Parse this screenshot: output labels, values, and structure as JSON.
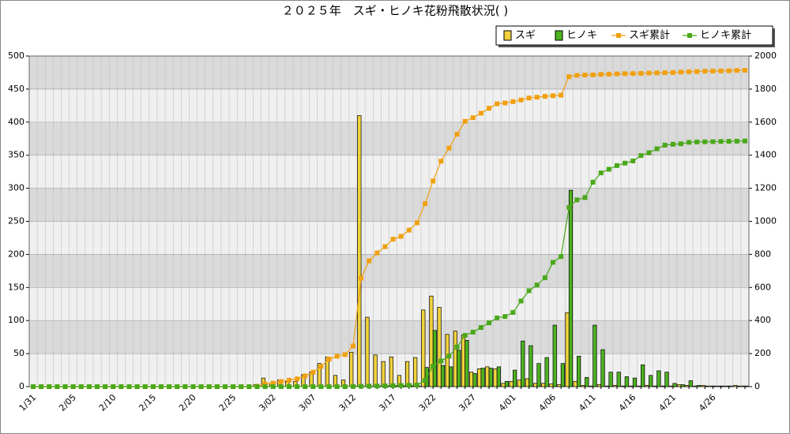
{
  "chart_data": {
    "type": "bar",
    "title": "２０２５年　スギ・ヒノキ花粉飛散状況( )",
    "categories": [
      "1/31",
      null,
      null,
      null,
      null,
      "2/05",
      null,
      null,
      null,
      null,
      "2/10",
      null,
      null,
      null,
      null,
      "2/15",
      null,
      null,
      null,
      null,
      "2/20",
      null,
      null,
      null,
      null,
      "2/25",
      null,
      null,
      null,
      null,
      "3/02",
      null,
      null,
      null,
      null,
      "3/07",
      null,
      null,
      null,
      null,
      "3/12",
      null,
      null,
      null,
      null,
      "3/17",
      null,
      null,
      null,
      null,
      "3/22",
      null,
      null,
      null,
      null,
      "3/27",
      null,
      null,
      null,
      null,
      "4/01",
      null,
      null,
      null,
      null,
      "4/06",
      null,
      null,
      null,
      null,
      "4/11",
      null,
      null,
      null,
      null,
      "4/16",
      null,
      null,
      null,
      null,
      "4/21",
      null,
      null,
      null,
      null,
      "4/26",
      null,
      null,
      null,
      null
    ],
    "series": [
      {
        "name": "スギ",
        "type": "bar",
        "color": "#f2d23c",
        "values": [
          0,
          0,
          0,
          0,
          0,
          0,
          0,
          0,
          0,
          0,
          0,
          0,
          0,
          0,
          0,
          0,
          0,
          0,
          0,
          0,
          0,
          0,
          0,
          0,
          0,
          0,
          0,
          0,
          3,
          13,
          5,
          10,
          8,
          8,
          18,
          22,
          35,
          45,
          17,
          10,
          52,
          410,
          105,
          48,
          38,
          45,
          17,
          38,
          44,
          116,
          137,
          120,
          79,
          84,
          78,
          22,
          27,
          30,
          27,
          5,
          8,
          10,
          12,
          5,
          5,
          4,
          3,
          112,
          8,
          2,
          1,
          3,
          1,
          2,
          1,
          1,
          1,
          2,
          1,
          1,
          1,
          3,
          2,
          1,
          2,
          1,
          1,
          1,
          2,
          1
        ]
      },
      {
        "name": "ヒノキ",
        "type": "bar",
        "color": "#4db31e",
        "values": [
          0,
          0,
          0,
          0,
          0,
          0,
          0,
          0,
          0,
          0,
          0,
          0,
          0,
          0,
          0,
          0,
          0,
          0,
          0,
          0,
          0,
          0,
          0,
          0,
          0,
          0,
          0,
          0,
          0,
          0,
          0,
          0,
          0,
          0,
          0,
          0,
          0,
          0,
          0,
          0,
          1,
          1,
          1,
          1,
          1,
          1,
          1,
          1,
          1,
          29,
          85,
          32,
          30,
          55,
          70,
          20,
          28,
          28,
          30,
          8,
          25,
          69,
          62,
          35,
          44,
          93,
          35,
          297,
          46,
          14,
          93,
          56,
          22,
          22,
          15,
          13,
          33,
          17,
          24,
          22,
          5,
          3,
          9,
          2,
          1,
          1,
          1,
          1,
          1,
          1
        ]
      },
      {
        "name": "スギ累計",
        "type": "line",
        "axis": "y2",
        "color": "#f0a010",
        "values": [
          0,
          0,
          0,
          0,
          0,
          0,
          0,
          0,
          0,
          0,
          0,
          0,
          0,
          0,
          0,
          0,
          0,
          0,
          0,
          0,
          0,
          0,
          0,
          0,
          0,
          0,
          0,
          0,
          3,
          16,
          21,
          31,
          39,
          47,
          65,
          87,
          122,
          167,
          184,
          194,
          246,
          656,
          761,
          809,
          847,
          892,
          909,
          947,
          991,
          1107,
          1244,
          1364,
          1443,
          1527,
          1605,
          1627,
          1654,
          1684,
          1711,
          1716,
          1724,
          1734,
          1746,
          1751,
          1756,
          1760,
          1763,
          1875,
          1883,
          1885,
          1886,
          1889,
          1890,
          1892,
          1893,
          1894,
          1895,
          1897,
          1898,
          1899,
          1900,
          1903,
          1905,
          1906,
          1908,
          1909,
          1910,
          1911,
          1913,
          1914
        ]
      },
      {
        "name": "ヒノキ累計",
        "type": "line",
        "axis": "y2",
        "color": "#4aa81a",
        "values": [
          0,
          0,
          0,
          0,
          0,
          0,
          0,
          0,
          0,
          0,
          0,
          0,
          0,
          0,
          0,
          0,
          0,
          0,
          0,
          0,
          0,
          0,
          0,
          0,
          0,
          0,
          0,
          0,
          0,
          0,
          0,
          0,
          0,
          0,
          0,
          0,
          0,
          0,
          0,
          0,
          1,
          2,
          3,
          4,
          5,
          6,
          7,
          8,
          9,
          38,
          123,
          155,
          185,
          240,
          310,
          330,
          358,
          386,
          416,
          424,
          449,
          518,
          580,
          615,
          659,
          752,
          787,
          1084,
          1130,
          1144,
          1237,
          1293,
          1315,
          1337,
          1352,
          1365,
          1398,
          1415,
          1439,
          1461,
          1466,
          1469,
          1478,
          1480,
          1481,
          1482,
          1483,
          1484,
          1485,
          1486
        ]
      }
    ],
    "ylim": [
      0,
      500
    ],
    "yticks": [
      0,
      50,
      100,
      150,
      200,
      250,
      300,
      350,
      400,
      450,
      500
    ],
    "y2lim": [
      0,
      2000
    ],
    "y2ticks": [
      0,
      200,
      400,
      600,
      800,
      1000,
      1200,
      1400,
      1600,
      1800,
      2000
    ],
    "grid": true,
    "legend": "top-right"
  }
}
